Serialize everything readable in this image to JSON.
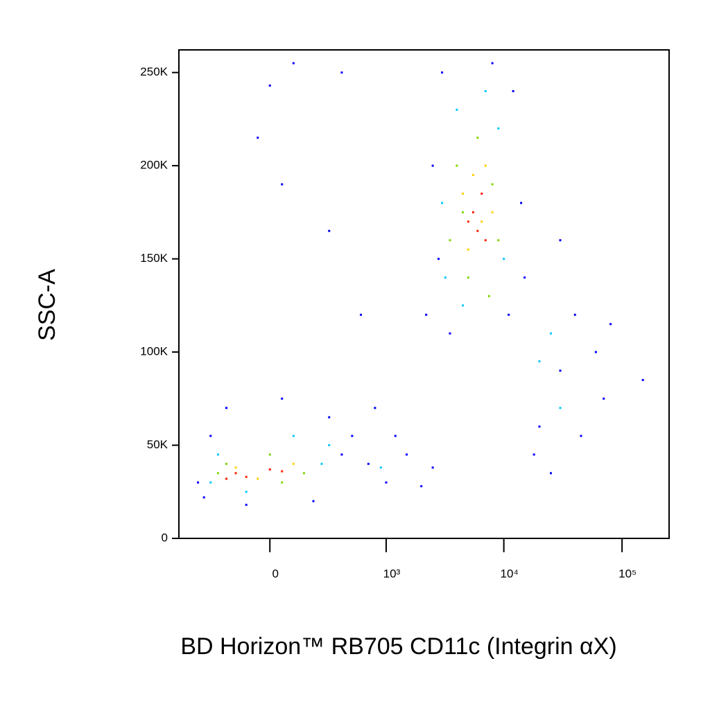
{
  "chart_data": {
    "type": "scatter",
    "xlabel": "BD Horizon™ RB705 CD11c (Integrin αX)",
    "ylabel": "SSC-A",
    "xscale": "biexponential",
    "xlim": [
      -600,
      250000
    ],
    "ylim": [
      0,
      262144
    ],
    "xticks": [
      0,
      {
        "value": 1000,
        "label": "10³"
      },
      {
        "value": 10000,
        "label": "10⁴"
      },
      {
        "value": 100000,
        "label": "10⁵"
      }
    ],
    "yticks": [
      0,
      {
        "value": 50000,
        "label": "50K"
      },
      {
        "value": 100000,
        "label": "100K"
      },
      {
        "value": 150000,
        "label": "150K"
      },
      {
        "value": 200000,
        "label": "200K"
      },
      {
        "value": 250000,
        "label": "250K"
      }
    ],
    "series": [
      {
        "color": "#0000ff",
        "x": [
          -400,
          -300,
          -200,
          50,
          300,
          400,
          -350,
          200,
          500,
          -100,
          700,
          1000,
          1500,
          2000,
          1200,
          2500,
          800,
          2200,
          2500,
          3000,
          2800,
          12000,
          14000,
          11000,
          3500,
          8000,
          15000,
          20000,
          30000,
          45000,
          60000,
          25000,
          40000,
          18000,
          70000,
          0,
          50,
          100,
          400,
          300,
          -50,
          600,
          150000,
          80000,
          30000
        ],
        "y": [
          30000,
          55000,
          70000,
          75000,
          65000,
          45000,
          22000,
          20000,
          55000,
          18000,
          40000,
          30000,
          45000,
          28000,
          55000,
          38000,
          70000,
          120000,
          200000,
          250000,
          150000,
          240000,
          180000,
          120000,
          110000,
          255000,
          140000,
          60000,
          90000,
          55000,
          100000,
          35000,
          120000,
          45000,
          75000,
          243000,
          190000,
          255000,
          250000,
          165000,
          215000,
          120000,
          85000,
          115000,
          160000
        ]
      },
      {
        "color": "#00c8ff",
        "x": [
          -250,
          -300,
          100,
          250,
          -100,
          300,
          900,
          3000,
          3200,
          4000,
          9000,
          10000,
          4500,
          7000,
          20000,
          25000,
          30000
        ],
        "y": [
          45000,
          30000,
          55000,
          40000,
          25000,
          50000,
          38000,
          180000,
          140000,
          230000,
          220000,
          150000,
          125000,
          240000,
          95000,
          110000,
          70000
        ]
      },
      {
        "color": "#7fd800",
        "x": [
          -200,
          0,
          150,
          -250,
          50,
          3500,
          4000,
          8000,
          9000,
          5000,
          6000,
          7500,
          4500
        ],
        "y": [
          40000,
          45000,
          35000,
          35000,
          30000,
          160000,
          200000,
          190000,
          160000,
          140000,
          215000,
          130000,
          175000
        ]
      },
      {
        "color": "#ffd200",
        "x": [
          -150,
          100,
          -50,
          4500,
          6500,
          5000,
          7000,
          5500,
          8000
        ],
        "y": [
          38000,
          40000,
          32000,
          185000,
          170000,
          155000,
          200000,
          195000,
          175000
        ]
      },
      {
        "color": "#ff2000",
        "x": [
          -150,
          -100,
          0,
          50,
          -200,
          5500,
          6000,
          6500,
          5000,
          7000
        ],
        "y": [
          35000,
          33000,
          37000,
          36000,
          32000,
          175000,
          165000,
          185000,
          170000,
          160000
        ]
      }
    ]
  }
}
